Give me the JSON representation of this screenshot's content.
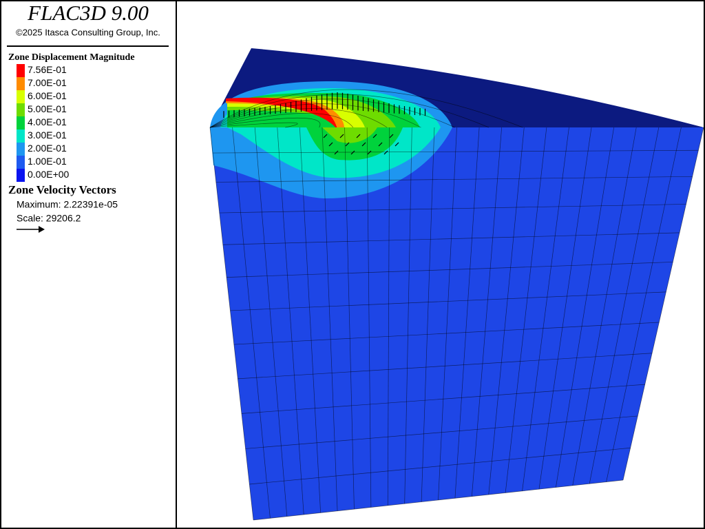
{
  "header": {
    "title": "FLAC3D 9.00",
    "copyright": "©2025 Itasca Consulting Group, Inc."
  },
  "legend": {
    "title": "Zone Displacement Magnitude",
    "entries": [
      {
        "label": "7.56E-01",
        "color": "#ff0000"
      },
      {
        "label": "7.00E-01",
        "color": "#ff8c00"
      },
      {
        "label": "6.00E-01",
        "color": "#d8ff00"
      },
      {
        "label": "5.00E-01",
        "color": "#6edc00"
      },
      {
        "label": "4.00E-01",
        "color": "#00d23c"
      },
      {
        "label": "3.00E-01",
        "color": "#00e6c8"
      },
      {
        "label": "2.00E-01",
        "color": "#1e96f0"
      },
      {
        "label": "1.00E-01",
        "color": "#1e5af0"
      },
      {
        "label": "0.00E+00",
        "color": "#0a14f0"
      }
    ]
  },
  "vectors": {
    "title": "Zone Velocity Vectors",
    "maximum": "Maximum: 2.22391e-05",
    "scale": "Scale: 29206.2"
  }
}
